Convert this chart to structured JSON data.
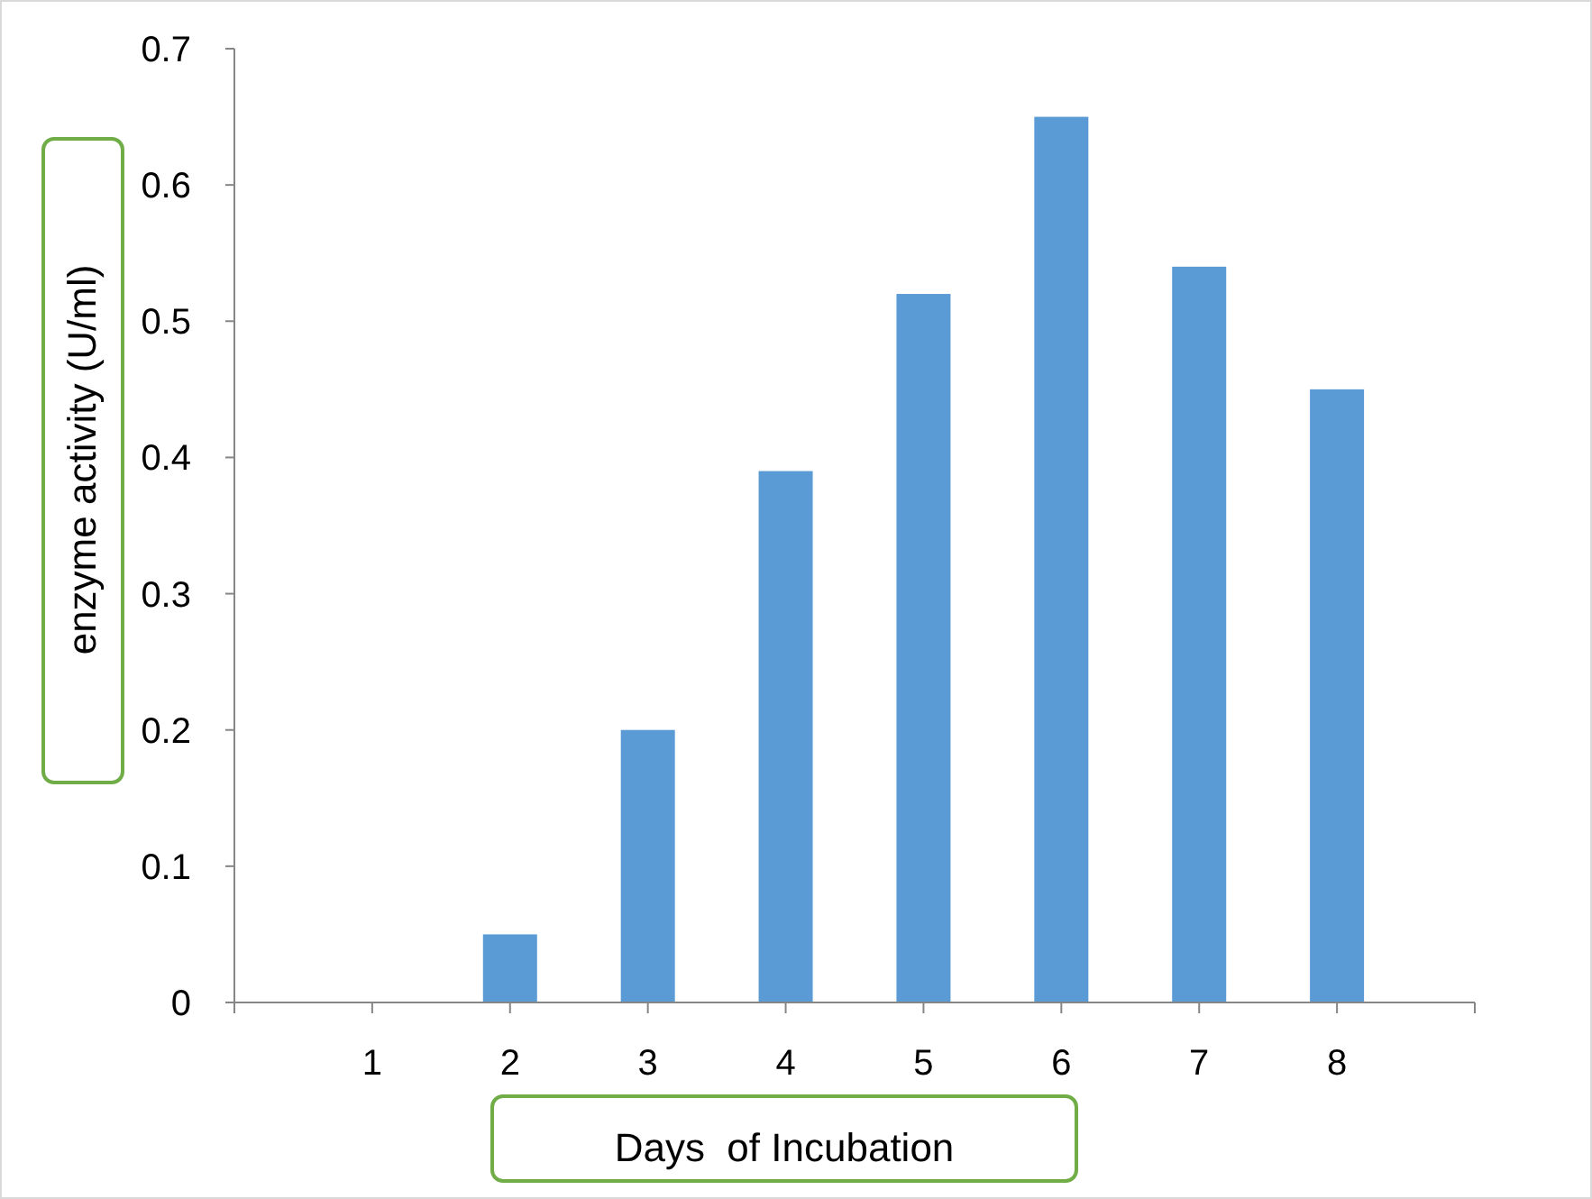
{
  "chart_data": {
    "type": "bar",
    "xlabel": "Days  of Incubation",
    "ylabel": "enzyme activity (U/ml)",
    "categories": [
      null,
      "1",
      "2",
      "3",
      "4",
      "5",
      "6",
      "7",
      "8",
      null
    ],
    "values": [
      null,
      0,
      0.05,
      0.2,
      0.39,
      0.52,
      0.65,
      0.54,
      0.45,
      null
    ],
    "color": "#5b9bd5",
    "ylim": [
      0,
      0.7
    ],
    "yticks": [
      0,
      0.1,
      0.2,
      0.3,
      0.4,
      0.5,
      0.6,
      0.7
    ]
  }
}
